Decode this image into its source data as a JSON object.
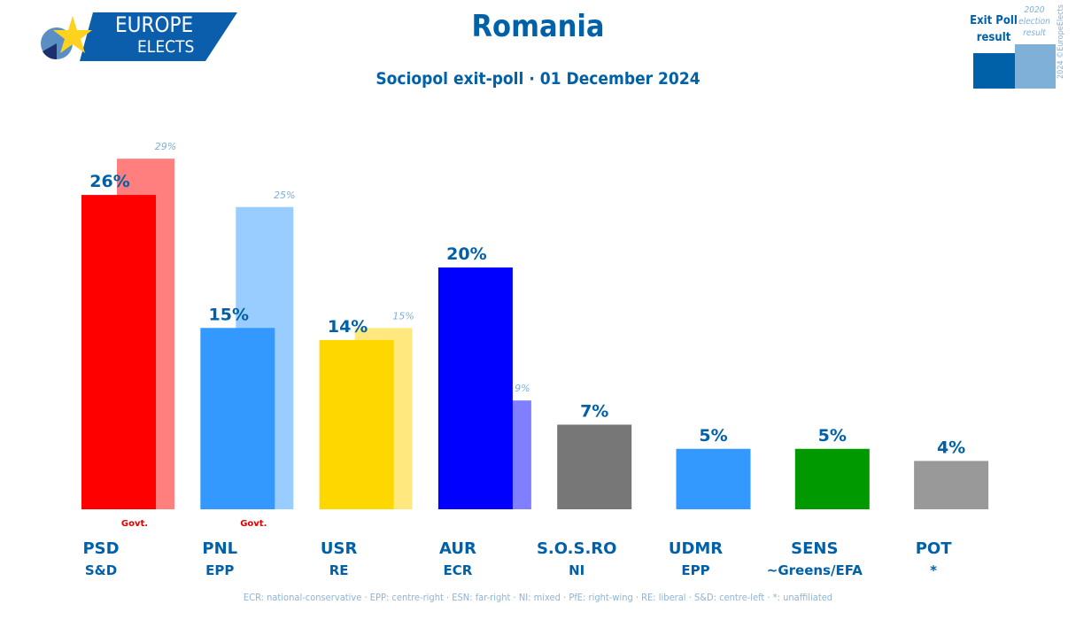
{
  "logo": {
    "line1": "EUROPE",
    "line2": "ELECTS"
  },
  "title": "Romania",
  "subtitle": "Sociopol exit-poll · 01 December 2024",
  "legend": {
    "current": "Exit Poll result",
    "previous": "2020 election result",
    "copyright": "2024 ©EuropeElects",
    "colors": {
      "current": "#0060a8",
      "previous": "#7fb0d8"
    }
  },
  "footer": "ECR: national-conservative · EPP: centre-right · ESN: far-right · NI: mixed · PfE: right-wing · RE: liberal · S&D: centre-left · *: unaffiliated",
  "chart_data": {
    "type": "bar",
    "categories": [
      "PSD",
      "PNL",
      "USR",
      "AUR",
      "S.O.S.RO",
      "UDMR",
      "SENS",
      "POT"
    ],
    "groups": [
      "S&D",
      "EPP",
      "RE",
      "ECR",
      "NI",
      "EPP",
      "~Greens/EFA",
      "*"
    ],
    "govt": [
      true,
      true,
      false,
      false,
      false,
      false,
      false,
      false
    ],
    "govt_label": "Govt.",
    "series": [
      {
        "name": "Exit Poll result",
        "values": [
          26,
          15,
          14,
          20,
          7,
          5,
          5,
          4
        ]
      },
      {
        "name": "2020 election result",
        "values": [
          29,
          25,
          15,
          9,
          null,
          null,
          null,
          null
        ]
      }
    ],
    "colors": [
      "#ff0000",
      "#3399ff",
      "#ffd700",
      "#0000ff",
      "#777777",
      "#3399ff",
      "#009900",
      "#999999"
    ],
    "prev_colors": [
      "#ff7f7f",
      "#99ccff",
      "#ffe97f",
      "#7f7fff",
      null,
      null,
      null,
      null
    ],
    "ylim": [
      0,
      30
    ]
  }
}
